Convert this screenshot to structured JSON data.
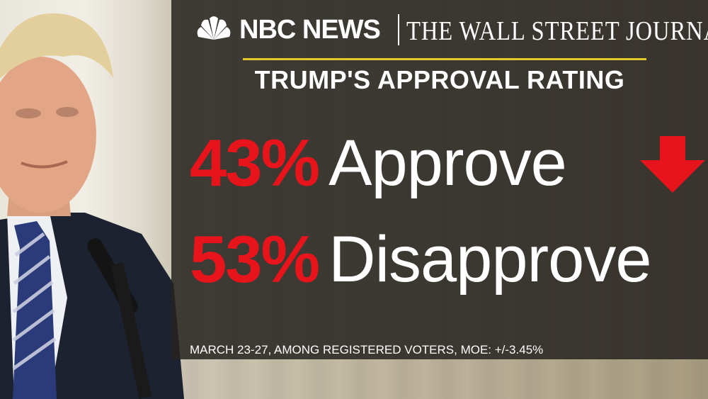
{
  "header": {
    "nbc_logo_text": "NBC NEWS",
    "wsj_logo_text": "THE WALL STREET JOURNAL",
    "title": "TRUMP'S APPROVAL RATING"
  },
  "results": {
    "approve": {
      "percent": "43%",
      "label": "Approve",
      "trend": "down"
    },
    "disapprove": {
      "percent": "53%",
      "label": "Disapprove"
    }
  },
  "footnote": "MARCH 23-27, AMONG REGISTERED VOTERS, MOE: +/-3.45%",
  "colors": {
    "percent_red": "#e8141c",
    "rule_yellow": "#e3c82e",
    "panel": "#262421",
    "text": "#ffffff"
  },
  "icons": {
    "brand": "nbc-peacock-icon",
    "trend": "down-arrow-icon"
  }
}
